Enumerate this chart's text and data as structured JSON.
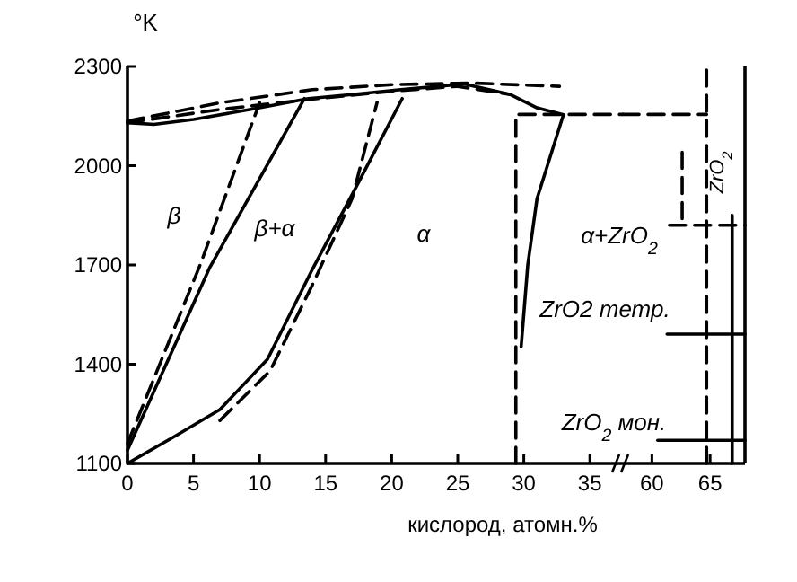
{
  "chart_data": [
    {
      "type": "line",
      "xlabel": "кислород, атомн.%",
      "ylabel": "°K",
      "xlim": [
        0,
        37.5
      ],
      "xticks": [
        0,
        5,
        10,
        15,
        20,
        25,
        30,
        35
      ],
      "ylim": [
        1100,
        2300
      ],
      "yticks": [
        1100,
        1400,
        1700,
        2000,
        2300
      ],
      "series": [
        {
          "color": "#000000",
          "line_style": "solid",
          "x": [
            0,
            2,
            5,
            10,
            13.7,
            17,
            20.7,
            25.5,
            29,
            31,
            33
          ],
          "values": [
            2130,
            2125,
            2140,
            2175,
            2203,
            2215,
            2230,
            2247,
            2215,
            2175,
            2154
          ]
        },
        {
          "color": "#000000",
          "line_style": "dashed",
          "x": [
            0,
            7,
            14,
            20,
            26,
            32.7
          ],
          "values": [
            2135,
            2190,
            2230,
            2245,
            2250,
            2240
          ]
        },
        {
          "color": "#000000",
          "line_style": "dashed",
          "x": [
            0,
            7,
            13.7,
            20,
            25,
            29
          ],
          "values": [
            2130,
            2170,
            2200,
            2225,
            2240,
            2215
          ]
        },
        {
          "color": "#000000",
          "line_style": "solid",
          "x": [
            0,
            6.2,
            13.4
          ],
          "values": [
            1140,
            1690,
            2203
          ]
        },
        {
          "color": "#000000",
          "line_style": "dashed",
          "x": [
            0,
            5.5,
            10
          ],
          "values": [
            1160,
            1700,
            2190
          ]
        },
        {
          "color": "#000000",
          "line_style": "solid",
          "x": [
            0,
            3.5,
            7,
            10.6,
            14,
            17.5,
            20.8
          ],
          "values": [
            1100,
            1180,
            1263,
            1415,
            1687,
            1950,
            2203
          ]
        },
        {
          "color": "#000000",
          "line_style": "dashed",
          "x": [
            7,
            10.8,
            14,
            17,
            18.9
          ],
          "values": [
            1230,
            1380,
            1640,
            1900,
            2192
          ]
        },
        {
          "color": "#000000",
          "line_style": "solid",
          "x": [
            33,
            31,
            30.3,
            29.8
          ],
          "values": [
            2154,
            1900,
            1700,
            1453
          ]
        },
        {
          "color": "#000000",
          "line_style": "dashed",
          "x": [
            29.4,
            29.4,
            37.5
          ],
          "values": [
            1100,
            2155,
            2155
          ]
        }
      ],
      "annotations": [
        "β",
        "β+α",
        "α",
        "α+ZrO$_{2}$",
        "ZrO2 тетр.",
        "ZrO$_{2}$ мон.",
        "ZrO$_{2}$"
      ]
    },
    {
      "type": "line",
      "xlim": [
        57.5,
        68
      ],
      "xticks": [
        60,
        65
      ],
      "ylim": [
        1100,
        2300
      ],
      "tick_labels": "x",
      "series": [
        {
          "color": "#000000",
          "line_style": "dashed",
          "x": [
            57.5,
            64.7
          ],
          "values": [
            2155,
            2155
          ]
        },
        {
          "color": "#000000",
          "line_style": "dashed",
          "x": [
            64.7,
            64.7
          ],
          "values": [
            1100,
            2300
          ]
        },
        {
          "color": "#000000",
          "line_style": "dashed",
          "x": [
            62.6,
            62.6
          ],
          "values": [
            1840,
            2060
          ]
        },
        {
          "color": "#000000",
          "line_style": "dashed",
          "x": [
            61.5,
            68
          ],
          "values": [
            1820,
            1820
          ]
        },
        {
          "color": "#000000",
          "line_style": "solid",
          "x": [
            66.9,
            66.9
          ],
          "values": [
            1100,
            1850
          ]
        },
        {
          "color": "#000000",
          "line_style": "solid",
          "x": [
            61.3,
            68
          ],
          "values": [
            1491,
            1491
          ]
        },
        {
          "color": "#000000",
          "line_style": "solid",
          "x": [
            60.5,
            68
          ],
          "values": [
            1170,
            1170
          ]
        }
      ]
    }
  ]
}
